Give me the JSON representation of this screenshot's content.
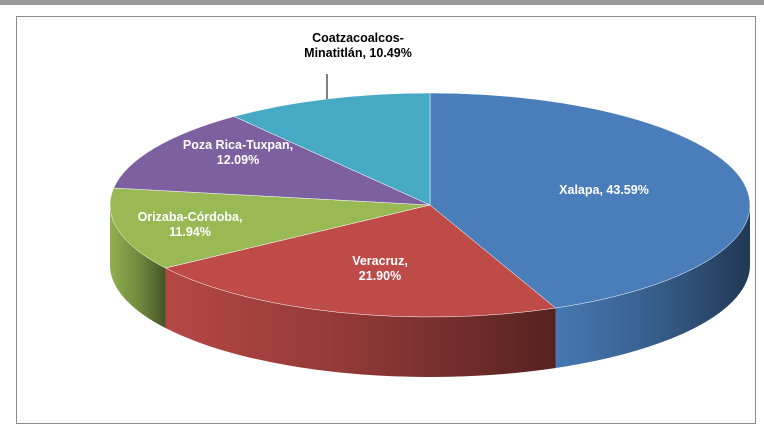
{
  "chart_data": {
    "type": "pie3d",
    "categories": [
      "Xalapa",
      "Veracruz",
      "Orizaba-Córdoba",
      "Poza Rica-Tuxpan",
      "Coatzacoalcos-Minatitlán"
    ],
    "values": [
      43.59,
      21.9,
      11.94,
      12.09,
      10.49
    ],
    "value_labels": [
      [
        "Xalapa, 43.59%"
      ],
      [
        "Veracruz,",
        "21.90%"
      ],
      [
        "Orizaba-Córdoba,",
        "11.94%"
      ],
      [
        "Poza Rica-Tuxpan,",
        "12.09%"
      ],
      [
        "Coatzacoalcos-",
        "Minatitlán, 10.49%"
      ]
    ],
    "colors": [
      "#4a7ebb",
      "#be4b48",
      "#98b954",
      "#7d60a0",
      "#46aac5"
    ]
  }
}
